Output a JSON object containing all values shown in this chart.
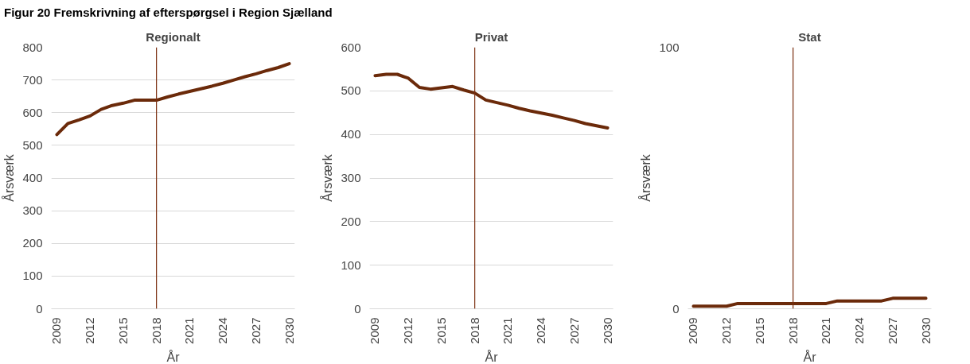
{
  "chart_data": [
    {
      "type": "line",
      "title": "Regionalt",
      "annotations": [
        "Figur 20 Fremskrivning af efterspørgsel i Region Sjælland"
      ],
      "xlabel": "År",
      "ylabel": "Årsværk",
      "x": [
        2009,
        2010,
        2011,
        2012,
        2013,
        2014,
        2015,
        2016,
        2017,
        2018,
        2019,
        2020,
        2021,
        2022,
        2023,
        2024,
        2025,
        2026,
        2027,
        2028,
        2029,
        2030
      ],
      "series": [
        {
          "color": "#6b2a0a",
          "values": [
            533,
            567,
            578,
            590,
            610,
            622,
            629,
            638,
            638,
            638,
            648,
            657,
            665,
            673,
            681,
            690,
            700,
            710,
            719,
            729,
            738,
            750
          ]
        }
      ],
      "xlim": [
        2008.5,
        2030.5
      ],
      "xticks": [
        2009,
        2012,
        2015,
        2018,
        2021,
        2024,
        2027,
        2030
      ],
      "ylim": [
        0,
        800
      ],
      "yticks": [
        0,
        100,
        200,
        300,
        400,
        500,
        600,
        700,
        800
      ],
      "grid": "y",
      "ref_lines": [
        {
          "axis": "x",
          "value": 2018,
          "color": "#7b2f10"
        }
      ]
    },
    {
      "type": "line",
      "title": "Privat",
      "xlabel": "År",
      "ylabel": "Årsværk",
      "x": [
        2009,
        2010,
        2011,
        2012,
        2013,
        2014,
        2015,
        2016,
        2017,
        2018,
        2019,
        2020,
        2021,
        2022,
        2023,
        2024,
        2025,
        2026,
        2027,
        2028,
        2029,
        2030
      ],
      "series": [
        {
          "color": "#6b2a0a",
          "values": [
            535,
            538,
            538,
            529,
            508,
            504,
            507,
            510,
            502,
            495,
            479,
            473,
            467,
            460,
            454,
            449,
            444,
            438,
            432,
            425,
            420,
            415
          ]
        }
      ],
      "xlim": [
        2008.5,
        2030.5
      ],
      "xticks": [
        2009,
        2012,
        2015,
        2018,
        2021,
        2024,
        2027,
        2030
      ],
      "ylim": [
        0,
        600
      ],
      "yticks": [
        0,
        100,
        200,
        300,
        400,
        500,
        600
      ],
      "grid": "y",
      "ref_lines": [
        {
          "axis": "x",
          "value": 2018,
          "color": "#7b2f10"
        }
      ]
    },
    {
      "type": "line",
      "title": "Stat",
      "xlabel": "År",
      "ylabel": "Årsværk",
      "x": [
        2009,
        2010,
        2011,
        2012,
        2013,
        2014,
        2015,
        2016,
        2017,
        2018,
        2019,
        2020,
        2021,
        2022,
        2023,
        2024,
        2025,
        2026,
        2027,
        2028,
        2029,
        2030
      ],
      "series": [
        {
          "color": "#6b2a0a",
          "values": [
            1,
            1,
            1,
            1,
            2,
            2,
            2,
            2,
            2,
            2,
            2,
            2,
            2,
            3,
            3,
            3,
            3,
            3,
            4,
            4,
            4,
            4
          ]
        }
      ],
      "xlim": [
        2008.5,
        2030.5
      ],
      "xticks": [
        2009,
        2012,
        2015,
        2018,
        2021,
        2024,
        2027,
        2030
      ],
      "ylim": [
        0,
        100
      ],
      "yticks": [
        0,
        100
      ],
      "grid": "y",
      "ref_lines": [
        {
          "axis": "x",
          "value": 2018,
          "color": "#7b2f10"
        }
      ]
    }
  ]
}
